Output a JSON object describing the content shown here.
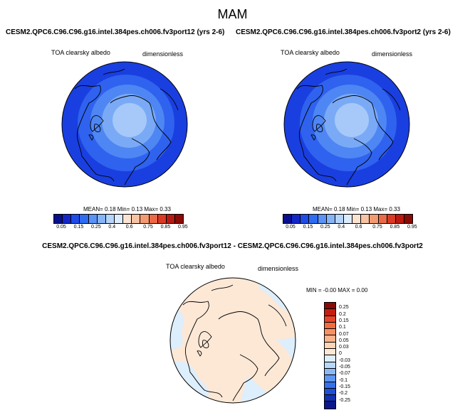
{
  "page": {
    "title": "MAM",
    "diff_title": "CESM2.QPC6.C96.C96.g16.intel.384pes.ch006.fv3port12 - CESM2.QPC6.C96.C96.g16.intel.384pes.ch006.fv3port2"
  },
  "panels": [
    {
      "title": "CESM2.QPC6.C96.C96.g16.intel.384pes.ch006.fv3port12 (yrs 2-6)",
      "var_label": "TOA clearsky albedo",
      "units": "dimensionless",
      "stats": "MEAN=   0.18  Min=   0.13  Max=   0.33"
    },
    {
      "title": "CESM2.QPC6.C96.C96.g16.intel.384pes.ch006.fv3port2 (yrs 2-6)",
      "var_label": "TOA clearsky albedo",
      "units": "dimensionless",
      "stats": "MEAN=   0.18  Min=   0.13  Max=   0.33"
    }
  ],
  "diff_panel": {
    "var_label": "TOA clearsky albedo",
    "units": "dimensionless",
    "stats": "MIN =  -0.00 MAX =   0.00"
  },
  "colorbar_top": {
    "colors": [
      "#0a0f8c",
      "#1426c8",
      "#1f4be6",
      "#2f6cf0",
      "#5a92f5",
      "#86b4f7",
      "#b6d4fa",
      "#dcebfc",
      "#fbe3d2",
      "#f7c3a5",
      "#f39a72",
      "#ea6a48",
      "#d93a24",
      "#b71a10",
      "#8a0a06"
    ],
    "ticks": [
      "0.05",
      "0.15",
      "0.25",
      "0.4",
      "0.6",
      "0.75",
      "0.85",
      "0.95"
    ]
  },
  "colorbar_diff": {
    "colors": [
      "#8a0a06",
      "#c41e10",
      "#e6452a",
      "#f36b3f",
      "#f79164",
      "#fab48d",
      "#fcd4b6",
      "#fde8d6",
      "#ddeefc",
      "#b8d8fa",
      "#8ab9f6",
      "#5e97f2",
      "#3571ea",
      "#1f4fd6",
      "#1330b0",
      "#0a178a"
    ],
    "ticks": [
      "0.25",
      "0.2",
      "0.15",
      "0.1",
      "0.07",
      "0.05",
      "0.03",
      "0",
      "-0.03",
      "-0.05",
      "-0.07",
      "-0.1",
      "-0.15",
      "-0.2",
      "-0.25"
    ]
  }
}
